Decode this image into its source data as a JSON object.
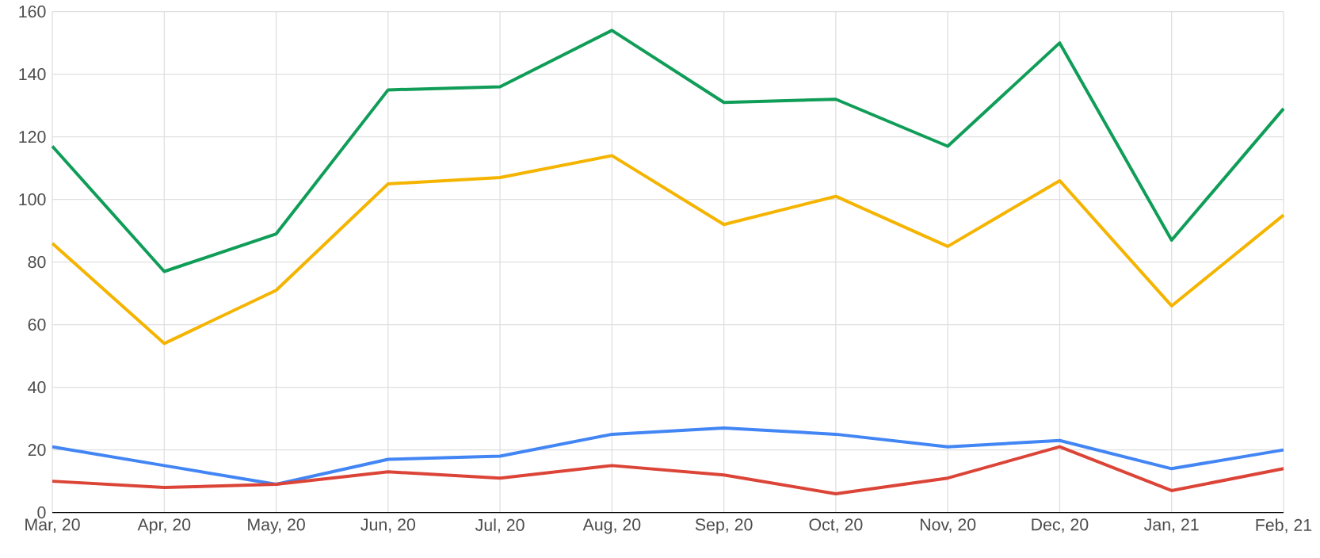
{
  "chart_data": {
    "type": "line",
    "categories": [
      "Mar, 20",
      "Apr, 20",
      "May, 20",
      "Jun, 20",
      "Jul, 20",
      "Aug, 20",
      "Sep, 20",
      "Oct, 20",
      "Nov, 20",
      "Dec, 20",
      "Jan, 21",
      "Feb, 21"
    ],
    "series": [
      {
        "color": "#0f9d58",
        "values": [
          117,
          77,
          89,
          135,
          136,
          154,
          131,
          132,
          117,
          150,
          87,
          129
        ]
      },
      {
        "color": "#f4b400",
        "values": [
          86,
          54,
          71,
          105,
          107,
          114,
          92,
          101,
          85,
          106,
          66,
          95
        ]
      },
      {
        "color": "#4285f4",
        "values": [
          21,
          15,
          9,
          17,
          18,
          25,
          27,
          25,
          21,
          23,
          14,
          20
        ]
      },
      {
        "color": "#db4437",
        "values": [
          10,
          8,
          9,
          13,
          11,
          15,
          12,
          6,
          11,
          21,
          7,
          14
        ]
      }
    ],
    "ylim": [
      0,
      160
    ],
    "yticks": [
      0,
      20,
      40,
      60,
      80,
      100,
      120,
      140,
      160
    ],
    "grid": true,
    "marker": "none",
    "line_style": "solid"
  }
}
